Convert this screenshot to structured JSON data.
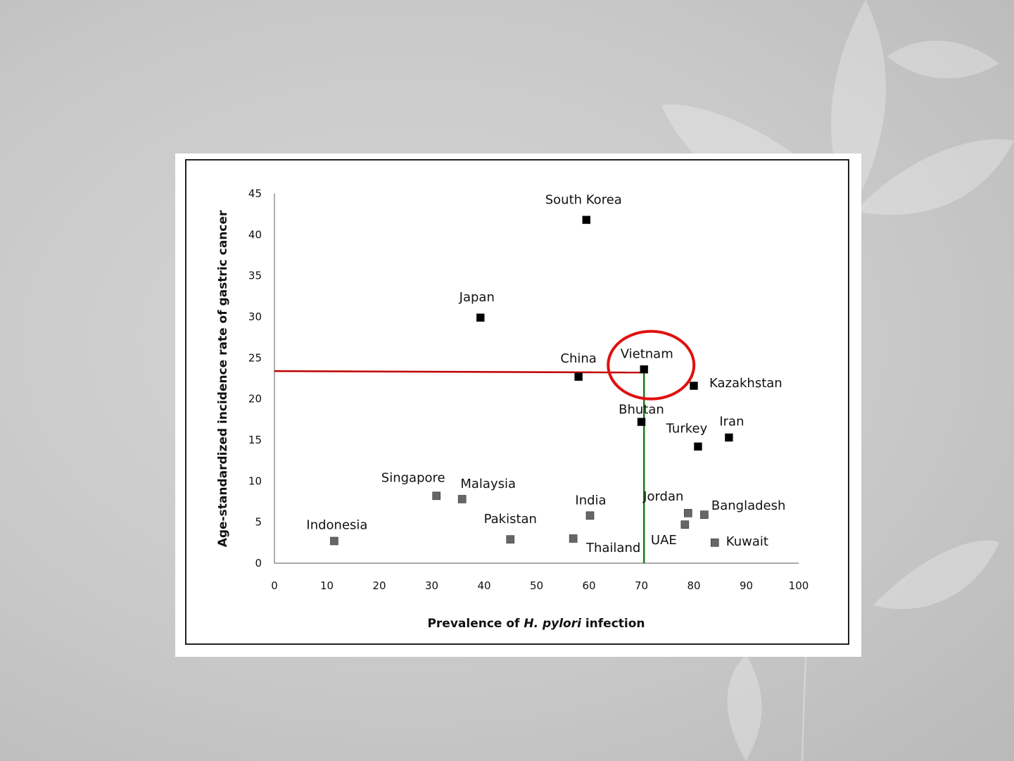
{
  "chart_data": {
    "type": "scatter",
    "xlabel_prefix": "Prevalence of ",
    "xlabel_italic": "H. pylori",
    "xlabel_suffix": " infection",
    "ylabel": "Age-standardized incidence rate of gastric cancer",
    "xlim": [
      0,
      100
    ],
    "ylim": [
      0,
      45
    ],
    "xticks": [
      0,
      10,
      20,
      30,
      40,
      50,
      60,
      70,
      80,
      90,
      100
    ],
    "yticks": [
      0,
      5,
      10,
      15,
      20,
      25,
      30,
      35,
      40,
      45
    ],
    "grid": false,
    "points": [
      {
        "label": "South Korea",
        "x": 59.5,
        "y": 41.8,
        "color": "#000000"
      },
      {
        "label": "Japan",
        "x": 39.3,
        "y": 29.9,
        "color": "#000000"
      },
      {
        "label": "China",
        "x": 58.0,
        "y": 22.7,
        "color": "#000000"
      },
      {
        "label": "Vietnam",
        "x": 70.5,
        "y": 23.6,
        "color": "#000000"
      },
      {
        "label": "Kazakhstan",
        "x": 80.0,
        "y": 21.6,
        "color": "#000000"
      },
      {
        "label": "Bhutan",
        "x": 70.0,
        "y": 17.2,
        "color": "#000000"
      },
      {
        "label": "Turkey",
        "x": 80.8,
        "y": 14.2,
        "color": "#000000"
      },
      {
        "label": "Iran",
        "x": 86.7,
        "y": 15.3,
        "color": "#000000"
      },
      {
        "label": "Singapore",
        "x": 30.9,
        "y": 8.2,
        "color": "#666666"
      },
      {
        "label": "Malaysia",
        "x": 35.8,
        "y": 7.8,
        "color": "#666666"
      },
      {
        "label": "India",
        "x": 60.2,
        "y": 5.8,
        "color": "#666666"
      },
      {
        "label": "Jordan",
        "x": 78.9,
        "y": 6.1,
        "color": "#666666"
      },
      {
        "label": "Bangladesh",
        "x": 82.0,
        "y": 5.9,
        "color": "#666666"
      },
      {
        "label": "UAE",
        "x": 78.3,
        "y": 4.7,
        "color": "#666666"
      },
      {
        "label": "Pakistan",
        "x": 45.0,
        "y": 2.9,
        "color": "#666666"
      },
      {
        "label": "Thailand",
        "x": 57.0,
        "y": 3.0,
        "color": "#666666"
      },
      {
        "label": "Indonesia",
        "x": 11.4,
        "y": 2.7,
        "color": "#666666"
      },
      {
        "label": "Kuwait",
        "x": 84.0,
        "y": 2.5,
        "color": "#666666"
      }
    ],
    "annotations": {
      "horizontal_line": {
        "y": 23.3,
        "x_from": 0,
        "x_to": 70.5,
        "color": "#c00000"
      },
      "vertical_line": {
        "x": 70.5,
        "y_from": 0,
        "y_to": 23.3,
        "color": "#1a7a1a"
      },
      "highlight_circle": {
        "around": "Vietnam",
        "color": "#e01010"
      }
    }
  }
}
